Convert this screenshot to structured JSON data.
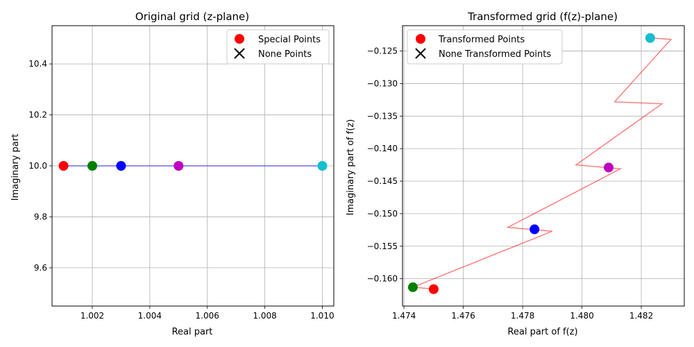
{
  "colors": {
    "red": "#ff0000",
    "green": "#008000",
    "blue": "#0000ff",
    "magenta": "#bf00bf",
    "cyan": "#17becf",
    "line_left": "#0000ff",
    "line_right": "#ff0000",
    "grid": "#b0b0b0"
  },
  "chart_data": [
    {
      "type": "scatter",
      "title": "Original grid (z-plane)",
      "xlabel": "Real part",
      "ylabel": "Imaginary part",
      "xlim": [
        1.0006,
        1.0104
      ],
      "ylim": [
        9.45,
        10.55
      ],
      "xticks": [
        1.002,
        1.004,
        1.006,
        1.008,
        1.01
      ],
      "xtick_labels": [
        "1.002",
        "1.004",
        "1.006",
        "1.008",
        "1.010"
      ],
      "yticks": [
        9.6,
        9.8,
        10.0,
        10.2,
        10.4
      ],
      "ytick_labels": [
        "9.6",
        "9.8",
        "10.0",
        "10.2",
        "10.4"
      ],
      "grid": true,
      "legend_position": "top-right",
      "legend": [
        "Special Points",
        "None Points"
      ],
      "line": {
        "x": [
          1.001,
          1.002,
          1.003,
          1.005,
          1.01
        ],
        "y": [
          10.0,
          10.0,
          10.0,
          10.0,
          10.0
        ],
        "color": "blue"
      },
      "points": [
        {
          "x": 1.001,
          "y": 10.0,
          "color": "red"
        },
        {
          "x": 1.002,
          "y": 10.0,
          "color": "green"
        },
        {
          "x": 1.003,
          "y": 10.0,
          "color": "blue"
        },
        {
          "x": 1.005,
          "y": 10.0,
          "color": "magenta"
        },
        {
          "x": 1.01,
          "y": 10.0,
          "color": "cyan"
        }
      ]
    },
    {
      "type": "scatter",
      "title": "Transformed grid (f(z)-plane)",
      "xlabel": "Real part of f(z)",
      "ylabel": "Imaginary part of f(z)",
      "xlim": [
        1.47395,
        1.48345
      ],
      "ylim": [
        -0.1642,
        -0.1211
      ],
      "xticks": [
        1.474,
        1.476,
        1.478,
        1.48,
        1.482
      ],
      "xtick_labels": [
        "1.474",
        "1.476",
        "1.478",
        "1.480",
        "1.482"
      ],
      "yticks": [
        -0.16,
        -0.155,
        -0.15,
        -0.145,
        -0.14,
        -0.135,
        -0.13,
        -0.125
      ],
      "ytick_labels": [
        "−0.160",
        "−0.155",
        "−0.150",
        "−0.145",
        "−0.140",
        "−0.135",
        "−0.130",
        "−0.125"
      ],
      "grid": true,
      "legend_position": "top-left",
      "legend": [
        "Transformed Points",
        "None Transformed Points"
      ],
      "line": {
        "x": [
          1.475,
          1.4743,
          1.479,
          1.4775,
          1.4813,
          1.4798,
          1.4827,
          1.4811,
          1.483,
          1.4823
        ],
        "y": [
          -0.1616,
          -0.1613,
          -0.1527,
          -0.1521,
          -0.1431,
          -0.1425,
          -0.1331,
          -0.1328,
          -0.1232,
          -0.123
        ],
        "color": "line_right"
      },
      "points": [
        {
          "x": 1.475,
          "y": -0.1616,
          "color": "red"
        },
        {
          "x": 1.4743,
          "y": -0.1613,
          "color": "green"
        },
        {
          "x": 1.4784,
          "y": -0.1524,
          "color": "blue"
        },
        {
          "x": 1.4809,
          "y": -0.1429,
          "color": "magenta"
        },
        {
          "x": 1.4823,
          "y": -0.123,
          "color": "cyan"
        }
      ]
    }
  ]
}
